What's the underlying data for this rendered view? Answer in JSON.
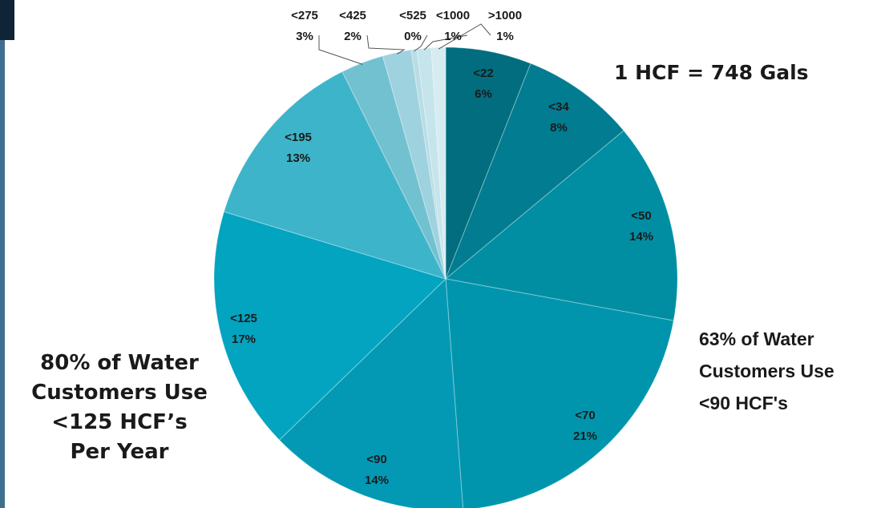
{
  "chart_data": {
    "type": "pie",
    "start_angle_deg": 0,
    "direction": "clockwise",
    "slices": [
      {
        "label": "<22",
        "value": 6,
        "display": "6%",
        "color": "#016d7f",
        "label_pos": "inside"
      },
      {
        "label": "<34",
        "value": 8,
        "display": "8%",
        "color": "#017c90",
        "label_pos": "inside"
      },
      {
        "label": "<50",
        "value": 14,
        "display": "14%",
        "color": "#018ea3",
        "label_pos": "inside"
      },
      {
        "label": "<70",
        "value": 21,
        "display": "21%",
        "color": "#0095ad",
        "label_pos": "inside"
      },
      {
        "label": "<90",
        "value": 14,
        "display": "14%",
        "color": "#0399b5",
        "label_pos": "inside"
      },
      {
        "label": "<125",
        "value": 17,
        "display": "17%",
        "color": "#02a4c0",
        "label_pos": "inside"
      },
      {
        "label": "<195",
        "value": 13,
        "display": "13%",
        "color": "#3db4c9",
        "label_pos": "inside"
      },
      {
        "label": "<275",
        "value": 3,
        "display": "3%",
        "color": "#72c1d1",
        "label_pos": "outside"
      },
      {
        "label": "<425",
        "value": 2,
        "display": "2%",
        "color": "#9ed2de",
        "label_pos": "outside"
      },
      {
        "label": "<525",
        "value": 0.4,
        "display": "0%",
        "color": "#b8dde6",
        "label_pos": "outside"
      },
      {
        "label": "<1000",
        "value": 1,
        "display": "1%",
        "color": "#c6e4eb",
        "label_pos": "outside"
      },
      {
        "label": ">1000",
        "value": 1,
        "display": "1%",
        "color": "#d6ecf1",
        "label_pos": "outside"
      }
    ]
  },
  "annotations": {
    "hcf_conversion": "1 HCF = 748 Gals",
    "right_note": [
      "63% of Water",
      "Customers Use",
      "<90 HCF's"
    ],
    "left_note": [
      "80% of Water",
      "Customers Use",
      "<125 HCF’s",
      "Per Year"
    ]
  }
}
